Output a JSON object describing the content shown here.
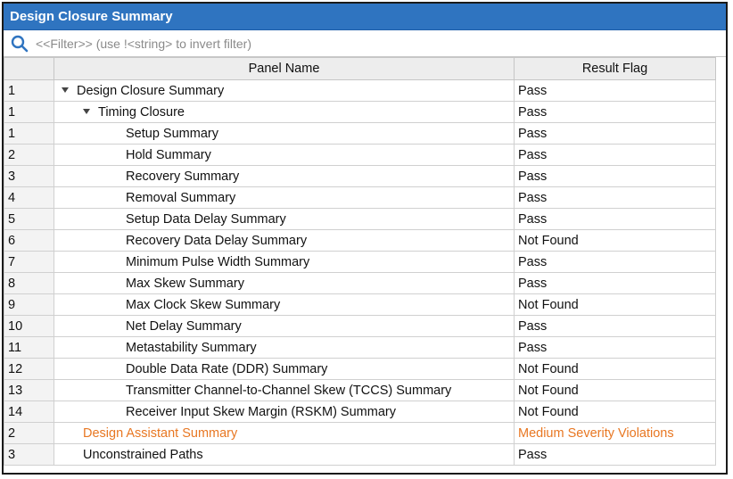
{
  "title": "Design Closure Summary",
  "filter": {
    "placeholder": "<<Filter>> (use !<string> to invert filter)"
  },
  "columns": {
    "index": "",
    "name": "Panel Name",
    "flag": "Result Flag"
  },
  "rows": [
    {
      "index": "1",
      "name": "Design Closure Summary",
      "flag": "Pass",
      "level": 0,
      "expanded": true
    },
    {
      "index": "1",
      "name": "Timing Closure",
      "flag": "Pass",
      "level": 1,
      "expanded": true
    },
    {
      "index": "1",
      "name": "Setup Summary",
      "flag": "Pass",
      "level": 2
    },
    {
      "index": "2",
      "name": "Hold Summary",
      "flag": "Pass",
      "level": 2
    },
    {
      "index": "3",
      "name": "Recovery Summary",
      "flag": "Pass",
      "level": 2
    },
    {
      "index": "4",
      "name": "Removal Summary",
      "flag": "Pass",
      "level": 2
    },
    {
      "index": "5",
      "name": "Setup Data Delay Summary",
      "flag": "Pass",
      "level": 2
    },
    {
      "index": "6",
      "name": "Recovery Data Delay Summary",
      "flag": "Not Found",
      "level": 2
    },
    {
      "index": "7",
      "name": "Minimum Pulse Width Summary",
      "flag": "Pass",
      "level": 2
    },
    {
      "index": "8",
      "name": "Max Skew Summary",
      "flag": "Pass",
      "level": 2
    },
    {
      "index": "9",
      "name": "Max Clock Skew Summary",
      "flag": "Not Found",
      "level": 2
    },
    {
      "index": "10",
      "name": "Net Delay Summary",
      "flag": "Pass",
      "level": 2
    },
    {
      "index": "11",
      "name": "Metastability Summary",
      "flag": "Pass",
      "level": 2
    },
    {
      "index": "12",
      "name": "Double Data Rate (DDR) Summary",
      "flag": "Not Found",
      "level": 2
    },
    {
      "index": "13",
      "name": "Transmitter Channel-to-Channel Skew (TCCS) Summary",
      "flag": "Not Found",
      "level": 2
    },
    {
      "index": "14",
      "name": "Receiver Input Skew Margin (RSKM) Summary",
      "flag": "Not Found",
      "level": 2
    },
    {
      "index": "2",
      "name": "Design Assistant Summary",
      "flag": "Medium Severity Violations",
      "level": 1,
      "highlight": true
    },
    {
      "index": "3",
      "name": "Unconstrained Paths",
      "flag": "Pass",
      "level": 1
    }
  ],
  "colors": {
    "titlebar": "#2f74c0",
    "warning": "#e87722"
  },
  "icons": {
    "filter": "search-icon",
    "expand": "chevron-down-icon"
  }
}
